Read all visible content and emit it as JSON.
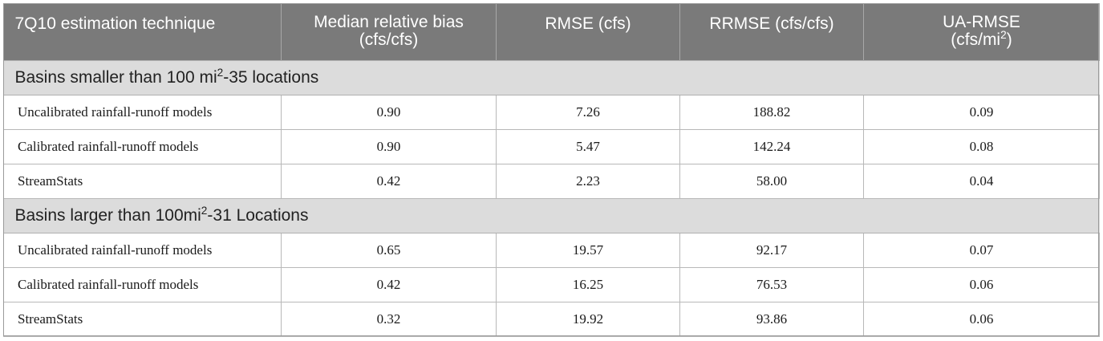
{
  "table": {
    "headers": [
      {
        "line1": "7Q10 estimation technique",
        "line2": ""
      },
      {
        "line1": "Median relative bias",
        "line2": "(cfs/cfs)"
      },
      {
        "line1": "RMSE (cfs)",
        "line2": ""
      },
      {
        "line1": "RRMSE (cfs/cfs)",
        "line2": ""
      },
      {
        "line1": "UA-RMSE",
        "line2_pre": "(cfs/mi",
        "line2_sup": "2",
        "line2_post": ")"
      }
    ],
    "sections": [
      {
        "title_pre": "Basins smaller than 100 mi",
        "title_sup": "2",
        "title_post": "-35 locations",
        "rows": [
          {
            "technique": "Uncalibrated rainfall-runoff models",
            "median_relative_bias": "0.90",
            "rmse": "7.26",
            "rrmse": "188.82",
            "ua_rmse": "0.09"
          },
          {
            "technique": "Calibrated rainfall-runoff models",
            "median_relative_bias": "0.90",
            "rmse": "5.47",
            "rrmse": "142.24",
            "ua_rmse": "0.08"
          },
          {
            "technique": "StreamStats",
            "median_relative_bias": "0.42",
            "rmse": "2.23",
            "rrmse": "58.00",
            "ua_rmse": "0.04"
          }
        ]
      },
      {
        "title_pre": "Basins larger than 100mi",
        "title_sup": "2",
        "title_post": "-31 Locations",
        "rows": [
          {
            "technique": "Uncalibrated rainfall-runoff models",
            "median_relative_bias": "0.65",
            "rmse": "19.57",
            "rrmse": "92.17",
            "ua_rmse": "0.07"
          },
          {
            "technique": "Calibrated rainfall-runoff models",
            "median_relative_bias": "0.42",
            "rmse": "16.25",
            "rrmse": "76.53",
            "ua_rmse": "0.06"
          },
          {
            "technique": "StreamStats",
            "median_relative_bias": "0.32",
            "rmse": "19.92",
            "rrmse": "93.86",
            "ua_rmse": "0.06"
          }
        ]
      }
    ]
  }
}
